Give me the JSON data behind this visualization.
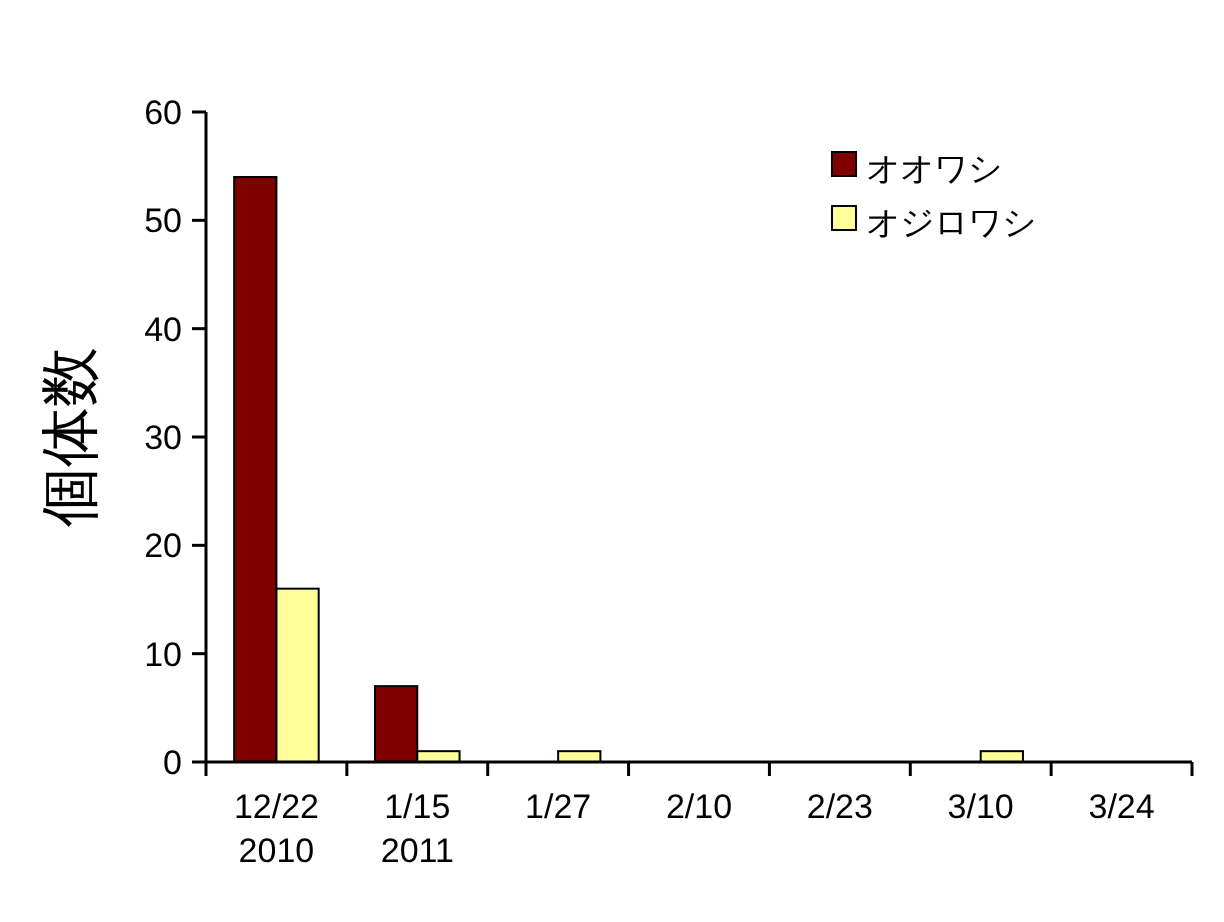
{
  "chart_data": {
    "type": "bar",
    "ylabel": "個体数",
    "categories": [
      "12/22\n2010",
      "1/15\n2011",
      "1/27",
      "2/10",
      "2/23",
      "3/10",
      "3/24"
    ],
    "series": [
      {
        "name": "オオワシ",
        "color": "#800000",
        "values": [
          54,
          7,
          0,
          0,
          0,
          0,
          0
        ]
      },
      {
        "name": "オジロワシ",
        "color": "#ffff99",
        "values": [
          16,
          1,
          1,
          0,
          0,
          1,
          0
        ]
      }
    ],
    "ylim": [
      0,
      60
    ],
    "yticks": [
      0,
      10,
      20,
      30,
      40,
      50,
      60
    ],
    "grid": false,
    "legend": "top right"
  }
}
